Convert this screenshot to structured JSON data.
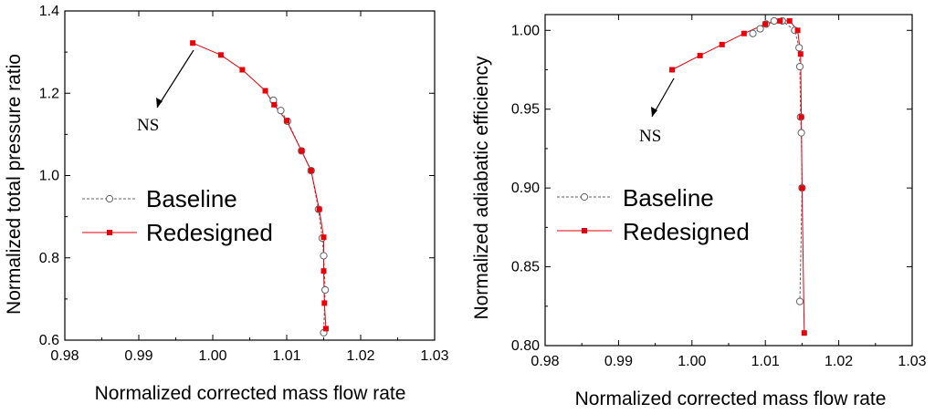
{
  "chart_data": [
    {
      "type": "line",
      "xlabel": "Normalized corrected mass flow rate",
      "ylabel": "Normalized total pressure ratio",
      "xlim": [
        0.98,
        1.03
      ],
      "ylim": [
        0.6,
        1.4
      ],
      "xticks": [
        "0.98",
        "0.99",
        "1.00",
        "1.01",
        "1.02",
        "1.03"
      ],
      "yticks": [
        "0.6",
        "0.8",
        "1.0",
        "1.2",
        "1.4"
      ],
      "legend_position": "center-left",
      "annotation": {
        "text": "NS",
        "points_to": [
          0.9973,
          1.322
        ]
      },
      "series": [
        {
          "name": "Baseline",
          "style": "dashed-open-circle",
          "color": "#606060",
          "x": [
            1.0082,
            1.0092,
            1.0101,
            1.012,
            1.0133,
            1.0143,
            1.0148,
            1.015,
            1.0152,
            1.015
          ],
          "y": [
            1.183,
            1.158,
            1.132,
            1.06,
            1.012,
            0.918,
            0.848,
            0.805,
            0.722,
            0.618
          ]
        },
        {
          "name": "Redesigned",
          "style": "solid-filled-square",
          "color": "#e8000b",
          "x": [
            0.9973,
            1.0011,
            1.004,
            1.0071,
            1.0083,
            1.01,
            1.012,
            1.0133,
            1.0144,
            1.015,
            1.015,
            1.0151,
            1.0153
          ],
          "y": [
            1.322,
            1.293,
            1.257,
            1.206,
            1.172,
            1.133,
            1.06,
            1.012,
            0.918,
            0.85,
            0.768,
            0.69,
            0.628
          ]
        }
      ]
    },
    {
      "type": "line",
      "xlabel": "Normalized corrected mass flow rate",
      "ylabel": "Normalized adiabatic efficiency",
      "xlim": [
        0.98,
        1.03
      ],
      "ylim": [
        0.8,
        1.01
      ],
      "xticks": [
        "0.98",
        "0.99",
        "1.00",
        "1.01",
        "1.02",
        "1.03"
      ],
      "yticks": [
        "0.80",
        "0.85",
        "0.90",
        "0.95",
        "1.00"
      ],
      "legend_position": "center-left",
      "annotation": {
        "text": "NS",
        "points_to": [
          0.9973,
          0.975
        ]
      },
      "series": [
        {
          "name": "Baseline",
          "style": "dashed-open-circle",
          "color": "#606060",
          "x": [
            1.0083,
            1.0093,
            1.0101,
            1.0112,
            1.0123,
            1.014,
            1.0146,
            1.0147,
            1.0148,
            1.0149,
            1.015,
            1.0147
          ],
          "y": [
            0.998,
            1.001,
            1.004,
            1.006,
            1.006,
            1.0,
            0.989,
            0.977,
            0.945,
            0.935,
            0.9,
            0.828
          ]
        },
        {
          "name": "Redesigned",
          "style": "solid-filled-square",
          "color": "#e8000b",
          "x": [
            0.9973,
            1.0011,
            1.0041,
            1.0071,
            1.01,
            1.012,
            1.0133,
            1.0144,
            1.0148,
            1.0149,
            1.015,
            1.0153
          ],
          "y": [
            0.975,
            0.984,
            0.991,
            0.998,
            1.004,
            1.006,
            1.006,
            1.0,
            0.985,
            0.945,
            0.9,
            0.808
          ]
        }
      ]
    }
  ]
}
